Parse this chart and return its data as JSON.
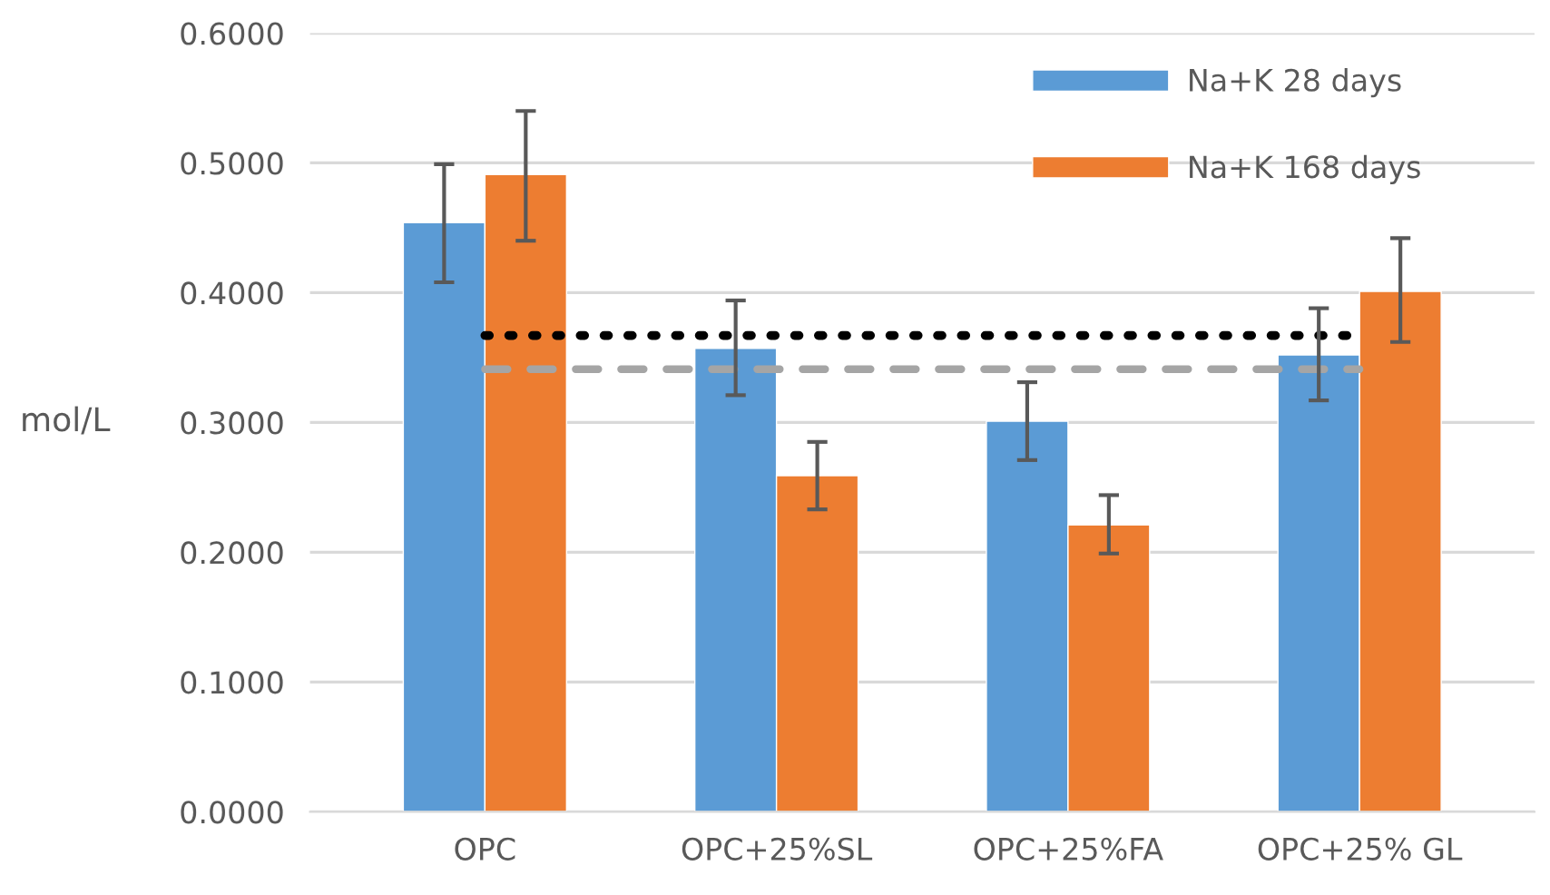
{
  "chart_data": {
    "type": "bar",
    "ylabel": "mol/L",
    "categories": [
      "OPC",
      "OPC+25%SL",
      "OPC+25%FA",
      "OPC+25% GL"
    ],
    "series": [
      {
        "name": "Na+K 28 days",
        "color": "#5b9bd5",
        "values": [
          0.454,
          0.357,
          0.301,
          0.352
        ],
        "errors": [
          [
            0.408,
            0.499
          ],
          [
            0.321,
            0.394
          ],
          [
            0.271,
            0.331
          ],
          [
            0.317,
            0.388
          ]
        ]
      },
      {
        "name": "Na+K 168 days",
        "color": "#ed7d31",
        "values": [
          0.491,
          0.259,
          0.221,
          0.401
        ],
        "errors": [
          [
            0.44,
            0.54
          ],
          [
            0.233,
            0.285
          ],
          [
            0.199,
            0.244
          ],
          [
            0.362,
            0.442
          ]
        ]
      }
    ],
    "ylim": [
      0,
      0.6
    ],
    "yticks": [
      {
        "value": 0,
        "label": "0.0000"
      },
      {
        "value": 0.1,
        "label": "0.1000"
      },
      {
        "value": 0.2,
        "label": "0.2000"
      },
      {
        "value": 0.3,
        "label": "0.3000"
      },
      {
        "value": 0.4,
        "label": "0.4000"
      },
      {
        "value": 0.5,
        "label": "0.5000"
      },
      {
        "value": 0.6,
        "label": "0.6000"
      }
    ],
    "ref_lines": [
      {
        "axis": "y",
        "value": 0.367,
        "color": "#000000",
        "line_style": "dotted"
      },
      {
        "axis": "y",
        "value": 0.341,
        "color": "#a5a5a5",
        "line_style": "dashed"
      }
    ],
    "grid": "y",
    "legend": "top right"
  }
}
